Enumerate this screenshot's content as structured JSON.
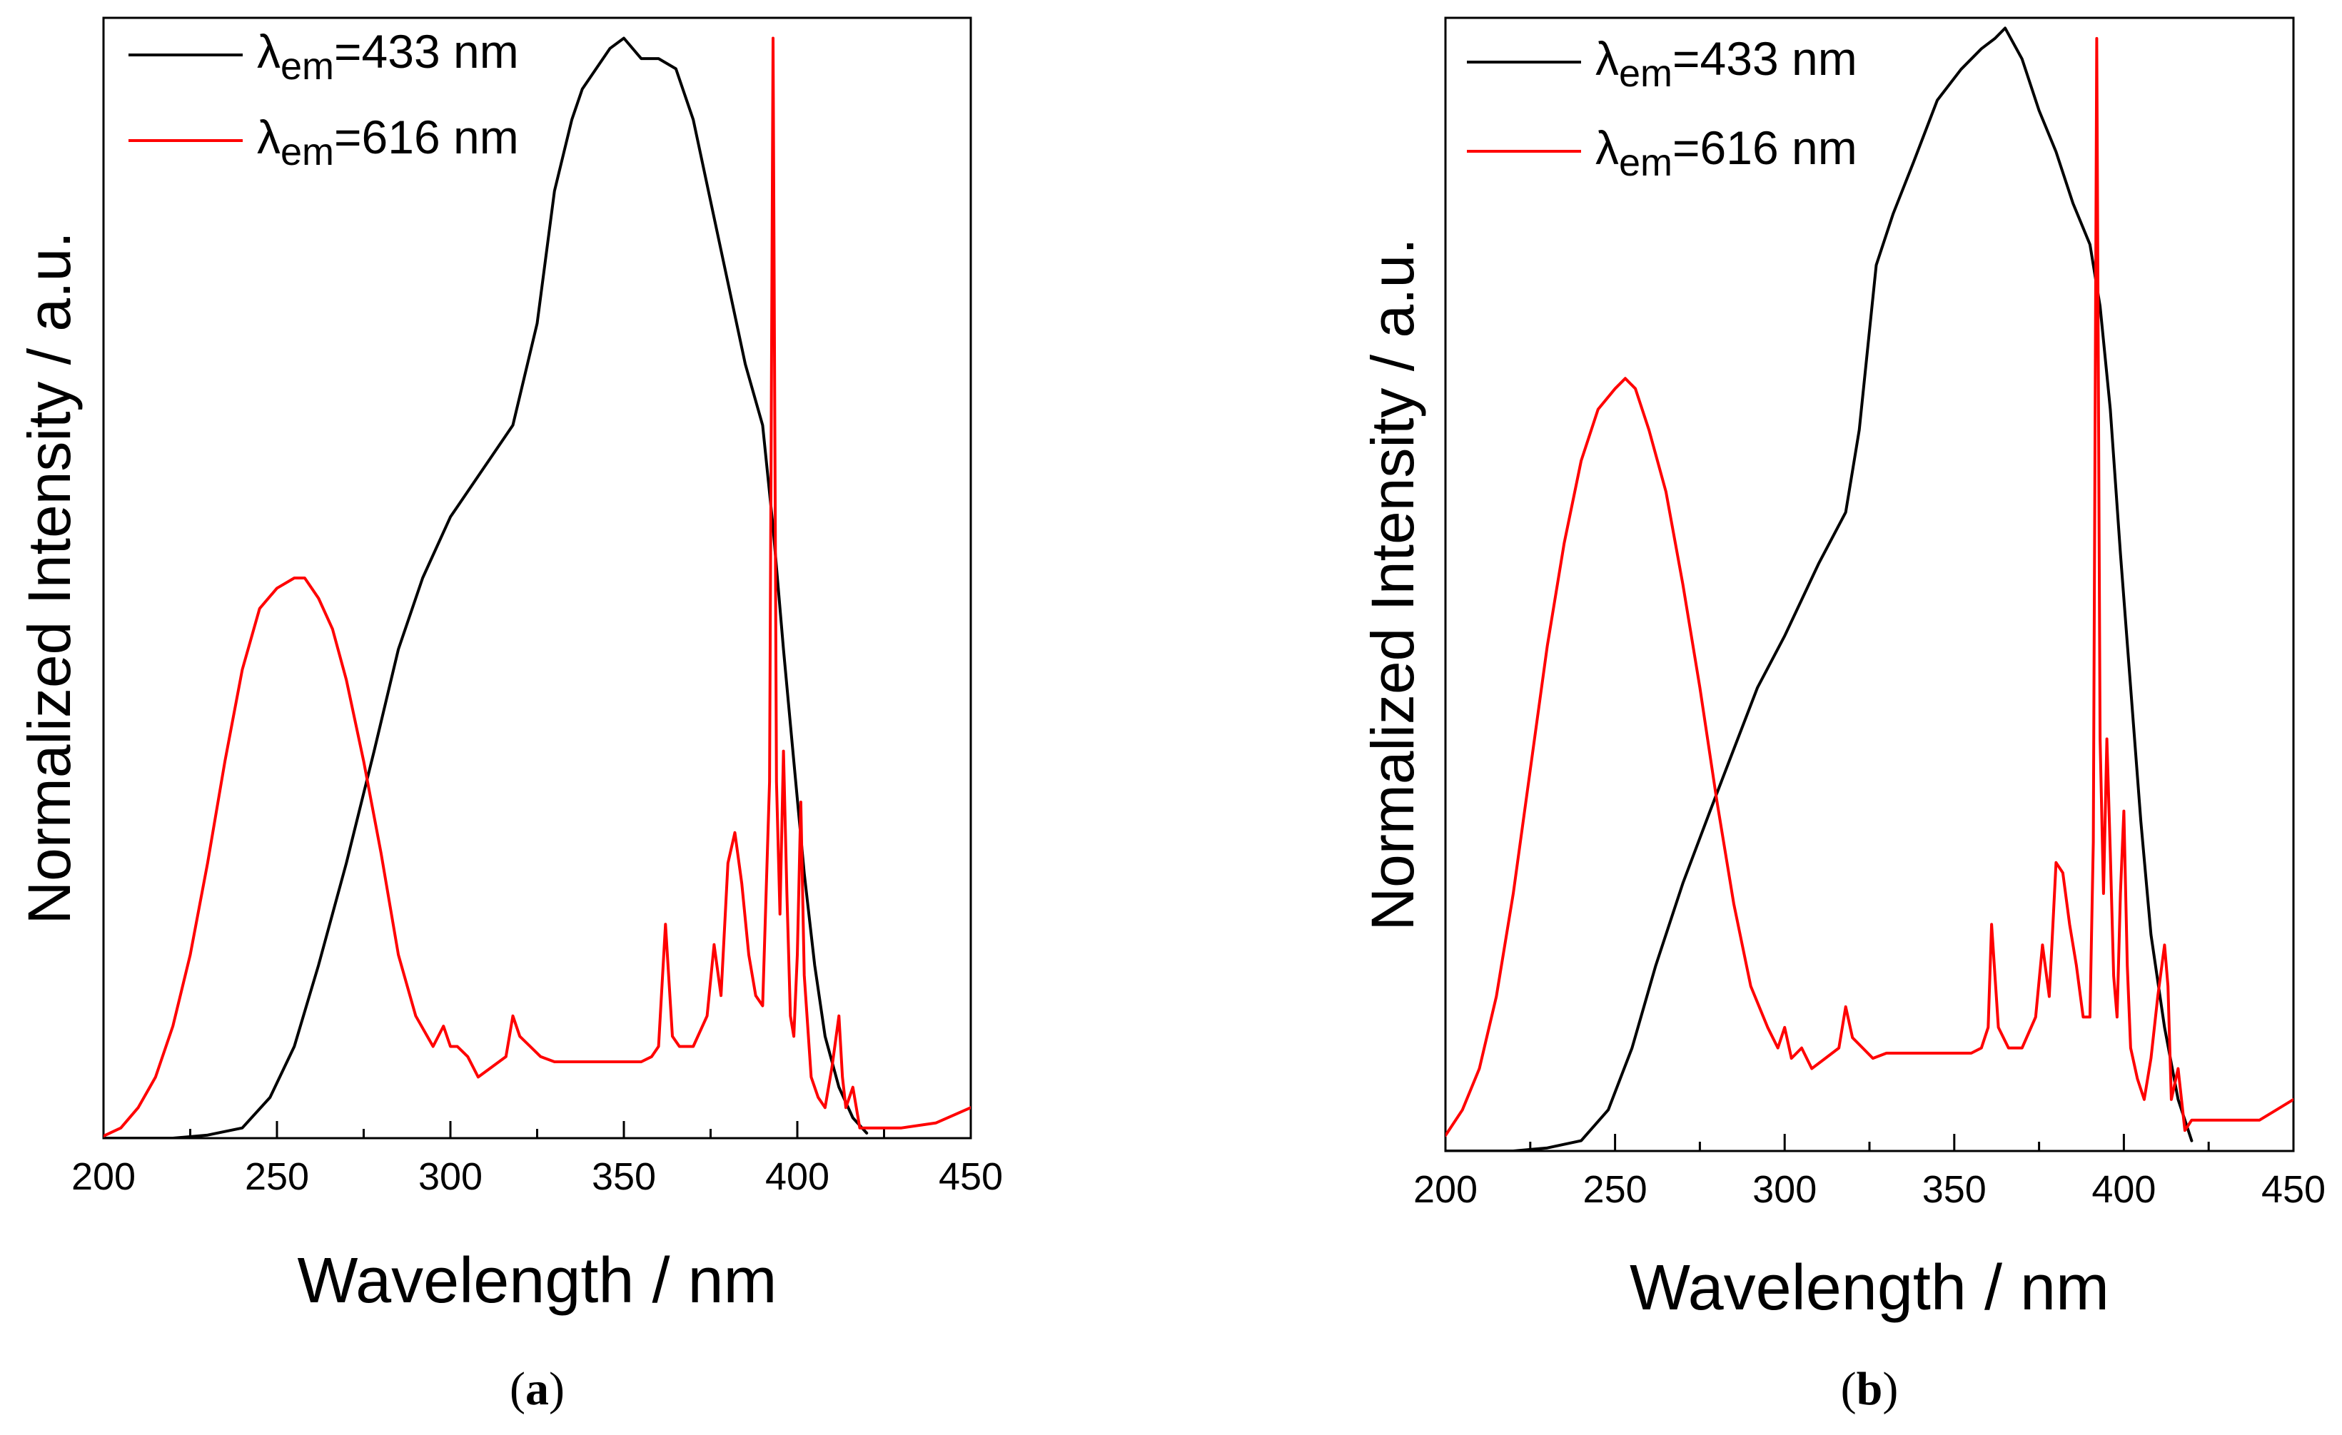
{
  "chart_data": [
    {
      "type": "line",
      "panel_label": "(a)",
      "panel_letter": "a",
      "xlabel": "Wavelength / nm",
      "ylabel": "Normalized Intensity / a.u.",
      "xlim": [
        200,
        450
      ],
      "ylim": [
        0,
        1.1
      ],
      "xticks": [
        "200",
        "250",
        "300",
        "350",
        "400",
        "450"
      ],
      "y_ticks_labeled": false,
      "grid": false,
      "legend_position": "top-left",
      "series": [
        {
          "name": "λem=433 nm",
          "legend_symbol": "λ",
          "legend_subscript": "em",
          "legend_rest": "=433 nm",
          "color": "#000000",
          "x": [
            200,
            220,
            230,
            240,
            248,
            255,
            262,
            270,
            278,
            285,
            292,
            300,
            308,
            318,
            325,
            330,
            335,
            338,
            342,
            346,
            350,
            355,
            360,
            365,
            370,
            375,
            380,
            385,
            390,
            393,
            396,
            399,
            402,
            405,
            408,
            412,
            416,
            420
          ],
          "values": [
            0.0,
            0.0,
            0.003,
            0.01,
            0.04,
            0.09,
            0.17,
            0.27,
            0.38,
            0.48,
            0.55,
            0.61,
            0.65,
            0.7,
            0.8,
            0.93,
            1.0,
            1.03,
            1.05,
            1.07,
            1.08,
            1.06,
            1.06,
            1.05,
            1.0,
            0.92,
            0.84,
            0.76,
            0.7,
            0.6,
            0.48,
            0.37,
            0.26,
            0.17,
            0.1,
            0.05,
            0.02,
            0.005
          ]
        },
        {
          "name": "λem=616 nm",
          "legend_symbol": "λ",
          "legend_subscript": "em",
          "legend_rest": "=616 nm",
          "color": "#ff0000",
          "x": [
            200,
            205,
            210,
            215,
            220,
            225,
            230,
            235,
            240,
            245,
            250,
            255,
            258,
            262,
            266,
            270,
            275,
            280,
            285,
            290,
            295,
            298,
            300,
            302,
            305,
            308,
            312,
            316,
            318,
            320,
            323,
            326,
            330,
            335,
            340,
            345,
            350,
            355,
            358,
            360,
            362,
            364,
            366,
            370,
            374,
            376,
            378,
            380,
            382,
            384,
            386,
            388,
            390,
            392,
            393,
            394,
            395,
            396,
            397,
            398,
            399,
            400,
            401,
            402,
            404,
            406,
            408,
            410,
            412,
            413,
            414,
            416,
            418,
            420,
            425,
            430,
            440,
            450
          ],
          "values": [
            0.002,
            0.01,
            0.03,
            0.06,
            0.11,
            0.18,
            0.27,
            0.37,
            0.46,
            0.52,
            0.54,
            0.55,
            0.55,
            0.53,
            0.5,
            0.45,
            0.37,
            0.28,
            0.18,
            0.12,
            0.09,
            0.11,
            0.09,
            0.09,
            0.08,
            0.06,
            0.07,
            0.08,
            0.12,
            0.1,
            0.09,
            0.08,
            0.075,
            0.075,
            0.075,
            0.075,
            0.075,
            0.075,
            0.08,
            0.09,
            0.21,
            0.1,
            0.09,
            0.09,
            0.12,
            0.19,
            0.14,
            0.27,
            0.3,
            0.25,
            0.18,
            0.14,
            0.13,
            0.35,
            1.08,
            0.35,
            0.22,
            0.38,
            0.24,
            0.12,
            0.1,
            0.18,
            0.33,
            0.16,
            0.06,
            0.04,
            0.03,
            0.07,
            0.12,
            0.06,
            0.03,
            0.05,
            0.01,
            0.01,
            0.01,
            0.01,
            0.015,
            0.03
          ]
        }
      ]
    },
    {
      "type": "line",
      "panel_label": "(b)",
      "panel_letter": "b",
      "xlabel": "Wavelength / nm",
      "ylabel": "Normalized Intensity / a.u.",
      "xlim": [
        200,
        450
      ],
      "ylim": [
        0,
        1.1
      ],
      "xticks": [
        "200",
        "250",
        "300",
        "350",
        "400",
        "450"
      ],
      "y_ticks_labeled": false,
      "grid": false,
      "legend_position": "top-left",
      "series": [
        {
          "name": "λem=433 nm",
          "legend_symbol": "λ",
          "legend_subscript": "em",
          "legend_rest": "=433 nm",
          "color": "#000000",
          "x": [
            200,
            220,
            230,
            240,
            248,
            255,
            262,
            270,
            278,
            285,
            292,
            300,
            310,
            318,
            322,
            327,
            332,
            338,
            345,
            352,
            358,
            362,
            365,
            370,
            375,
            380,
            385,
            390,
            393,
            396,
            399,
            402,
            405,
            408,
            412,
            416,
            420
          ],
          "values": [
            0.0,
            0.0,
            0.003,
            0.01,
            0.04,
            0.1,
            0.18,
            0.26,
            0.33,
            0.39,
            0.45,
            0.5,
            0.57,
            0.62,
            0.7,
            0.86,
            0.91,
            0.96,
            1.02,
            1.05,
            1.07,
            1.08,
            1.09,
            1.06,
            1.01,
            0.97,
            0.92,
            0.88,
            0.82,
            0.72,
            0.58,
            0.45,
            0.32,
            0.21,
            0.12,
            0.05,
            0.01
          ]
        },
        {
          "name": "λem=616 nm",
          "legend_symbol": "λ",
          "legend_subscript": "em",
          "legend_rest": "=616 nm",
          "color": "#ff0000",
          "x": [
            200,
            205,
            210,
            215,
            220,
            225,
            230,
            235,
            240,
            245,
            250,
            253,
            256,
            260,
            265,
            270,
            275,
            280,
            285,
            290,
            295,
            298,
            300,
            302,
            305,
            308,
            312,
            316,
            318,
            320,
            323,
            326,
            330,
            335,
            340,
            345,
            350,
            355,
            358,
            360,
            361,
            363,
            366,
            370,
            374,
            376,
            378,
            380,
            382,
            384,
            386,
            388,
            390,
            391,
            392,
            393,
            394,
            395,
            396,
            397,
            398,
            399,
            400,
            401,
            402,
            404,
            406,
            408,
            410,
            412,
            413,
            414,
            416,
            418,
            420,
            425,
            430,
            440,
            445,
            450
          ],
          "values": [
            0.015,
            0.04,
            0.08,
            0.15,
            0.25,
            0.37,
            0.49,
            0.59,
            0.67,
            0.72,
            0.74,
            0.75,
            0.74,
            0.7,
            0.64,
            0.55,
            0.45,
            0.34,
            0.24,
            0.16,
            0.12,
            0.1,
            0.12,
            0.09,
            0.1,
            0.08,
            0.09,
            0.1,
            0.14,
            0.11,
            0.1,
            0.09,
            0.095,
            0.095,
            0.095,
            0.095,
            0.095,
            0.095,
            0.1,
            0.12,
            0.22,
            0.12,
            0.1,
            0.1,
            0.13,
            0.2,
            0.15,
            0.28,
            0.27,
            0.22,
            0.18,
            0.13,
            0.13,
            0.3,
            1.08,
            0.4,
            0.25,
            0.4,
            0.29,
            0.17,
            0.13,
            0.25,
            0.33,
            0.18,
            0.1,
            0.07,
            0.05,
            0.09,
            0.15,
            0.2,
            0.16,
            0.05,
            0.08,
            0.02,
            0.03,
            0.03,
            0.03,
            0.03,
            0.04,
            0.05
          ]
        }
      ]
    }
  ]
}
